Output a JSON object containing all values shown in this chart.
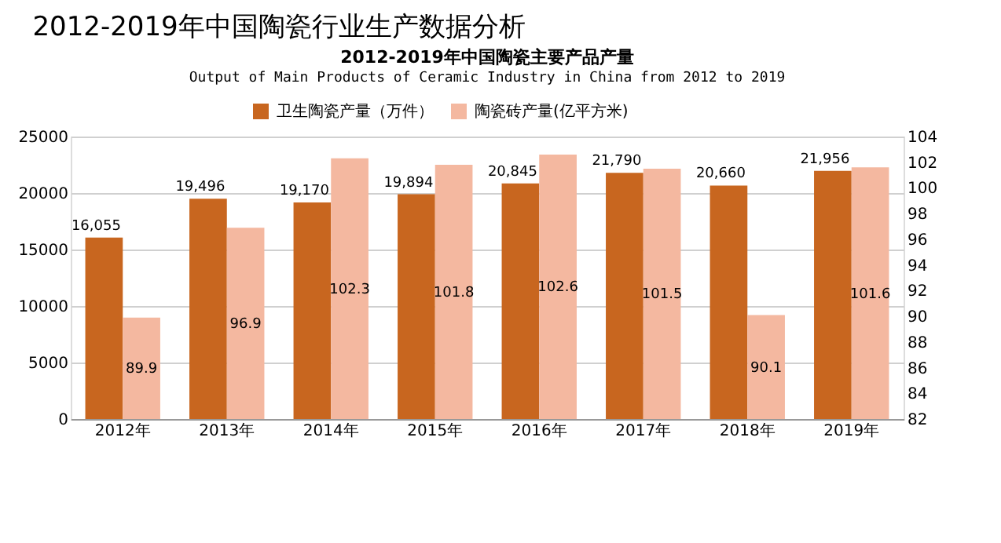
{
  "chart_data": {
    "type": "bar",
    "title": "2012-2019年中国陶瓷行业生产数据分析",
    "subtitle": "2012-2019年中国陶瓷主要产品产量",
    "annotations": [
      "Output of Main Products of Ceramic Industry in China from 2012 to 2019"
    ],
    "categories": [
      "2012年",
      "2013年",
      "2014年",
      "2015年",
      "2016年",
      "2017年",
      "2018年",
      "2019年"
    ],
    "series": [
      {
        "name": "卫生陶瓷产量（万件）",
        "color": "#c8661f",
        "values": [
          16055,
          19496,
          19170,
          19894,
          20845,
          21790,
          20660,
          21956
        ],
        "value_labels": [
          "16,055",
          "19,496",
          "19,170",
          "19,894",
          "20,845",
          "21,790",
          "20,660",
          "21,956"
        ]
      },
      {
        "name": "陶瓷砖产量(亿平方米)",
        "color": "#f4b8a0",
        "axis": "y2",
        "values": [
          89.9,
          96.9,
          102.3,
          101.8,
          102.6,
          101.5,
          90.1,
          101.6
        ],
        "value_labels": [
          "89.9",
          "96.9",
          "102.3",
          "101.8",
          "102.6",
          "101.5",
          "90.1",
          "101.6"
        ]
      }
    ],
    "ylim": [
      0,
      25000
    ],
    "yticks": [
      0,
      5000,
      10000,
      15000,
      20000,
      25000
    ],
    "y2lim": [
      82,
      104
    ],
    "y2ticks": [
      82,
      84,
      86,
      88,
      90,
      92,
      94,
      96,
      98,
      100,
      102,
      104
    ],
    "grid": "y",
    "legend": "top"
  }
}
